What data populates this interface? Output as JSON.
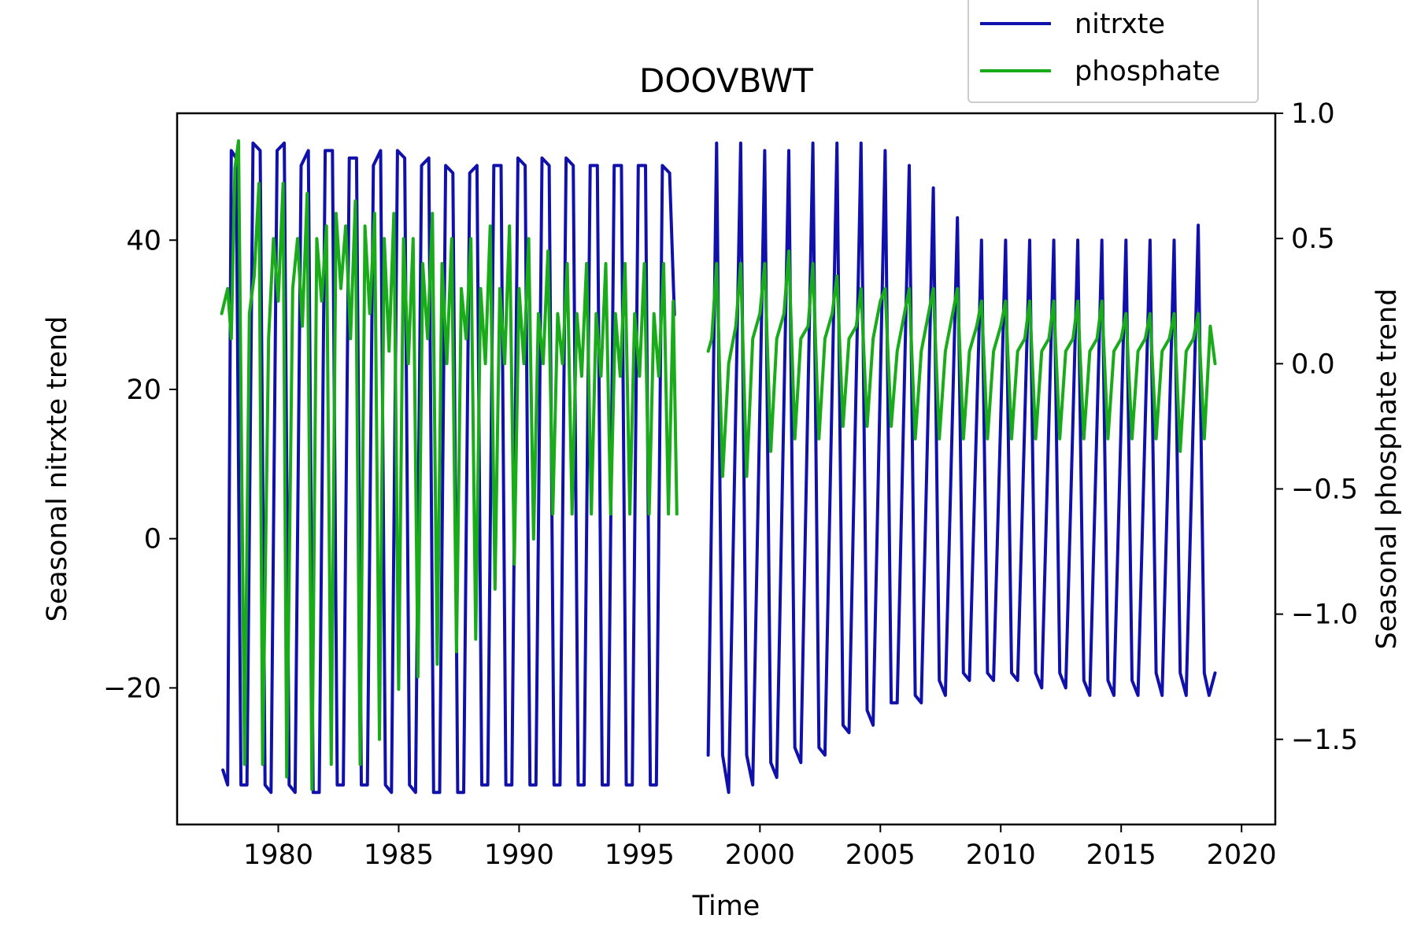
{
  "chart_data": {
    "type": "line",
    "title": "DOOVBWT",
    "xlabel": "Time",
    "ylabel": "Seasonal nitrxte trend",
    "ylabel_right": "Seasonal phosphate trend",
    "xlim": [
      1975.8,
      2021.4
    ],
    "ylim": [
      -38.3,
      57.0
    ],
    "ylim_right": [
      -1.84,
      1.0
    ],
    "xticks": [
      1980,
      1985,
      1990,
      1995,
      2000,
      2005,
      2010,
      2015,
      2020
    ],
    "xtick_labels": [
      "1980",
      "1985",
      "1990",
      "1995",
      "2000",
      "2005",
      "2010",
      "2015",
      "2020"
    ],
    "yticks": [
      -20,
      0,
      20,
      40
    ],
    "ytick_labels": [
      "−20",
      "0",
      "20",
      "40"
    ],
    "yticks_right": [
      -1.5,
      -1.0,
      -0.5,
      0.0,
      0.5,
      1.0
    ],
    "ytick_labels_right": [
      "−1.5",
      "−1.0",
      "−0.5",
      "0.0",
      "0.5",
      "1.0"
    ],
    "grid": false,
    "legend_placement": "top-right, above plot",
    "series": [
      {
        "name": "nitrxte",
        "axis": "left",
        "color": "#1010aa",
        "segments": [
          {
            "x": [
              1977.7,
              1977.9,
              1978.05,
              1978.25,
              1978.45,
              1978.7,
              1978.95,
              1979.25,
              1979.45,
              1979.7,
              1979.95,
              1980.25,
              1980.45,
              1980.7,
              1980.95,
              1981.25,
              1981.45,
              1981.7,
              1981.95,
              1982.25,
              1982.45,
              1982.7,
              1982.95,
              1983.25,
              1983.45,
              1983.7,
              1983.95,
              1984.25,
              1984.45,
              1984.7,
              1984.95,
              1985.25,
              1985.45,
              1985.7,
              1985.95,
              1986.25,
              1986.45,
              1986.7,
              1986.95,
              1987.25,
              1987.45,
              1987.7,
              1987.95,
              1988.25,
              1988.45,
              1988.7,
              1988.95,
              1989.25,
              1989.45,
              1989.7,
              1989.95,
              1990.25,
              1990.45,
              1990.7,
              1990.95,
              1991.25,
              1991.45,
              1991.7,
              1991.95,
              1992.25,
              1992.45,
              1992.7,
              1992.95,
              1993.25,
              1993.45,
              1993.7,
              1993.95,
              1994.25,
              1994.45,
              1994.7,
              1994.95,
              1995.25,
              1995.45,
              1995.7,
              1995.95,
              1996.25,
              1996.45
            ],
            "y": [
              -31,
              -33,
              52,
              51,
              -33,
              -33,
              53,
              52,
              -33,
              -34,
              52,
              53,
              -33,
              -34,
              50,
              52,
              -34,
              -34,
              52,
              52,
              -33,
              -33,
              51,
              51,
              -33,
              -33,
              50,
              52,
              -33,
              -34,
              52,
              51,
              -33,
              -34,
              50,
              51,
              -34,
              -34,
              50,
              49,
              -34,
              -34,
              49,
              50,
              -33,
              -33,
              50,
              50,
              -33,
              -33,
              51,
              50,
              -33,
              -33,
              51,
              50,
              -33,
              -33,
              51,
              50,
              -33,
              -33,
              50,
              50,
              -33,
              -33,
              50,
              50,
              -33,
              -33,
              50,
              50,
              -33,
              -33,
              50,
              49,
              30
            ]
          },
          {
            "x": [
              1997.85,
              1998.2,
              1998.45,
              1998.7,
              1999.2,
              1999.45,
              1999.7,
              2000.2,
              2000.45,
              2000.7,
              2001.2,
              2001.45,
              2001.7,
              2002.2,
              2002.45,
              2002.7,
              2003.2,
              2003.45,
              2003.7,
              2004.2,
              2004.45,
              2004.7,
              2005.2,
              2005.45,
              2005.7,
              2006.2,
              2006.45,
              2006.7,
              2007.2,
              2007.45,
              2007.7,
              2008.2,
              2008.45,
              2008.7,
              2009.2,
              2009.45,
              2009.7,
              2010.2,
              2010.45,
              2010.7,
              2011.2,
              2011.45,
              2011.7,
              2012.2,
              2012.45,
              2012.7,
              2013.2,
              2013.45,
              2013.7,
              2014.2,
              2014.45,
              2014.7,
              2015.2,
              2015.45,
              2015.7,
              2016.2,
              2016.45,
              2016.7,
              2017.2,
              2017.45,
              2017.7,
              2018.2,
              2018.45,
              2018.65,
              2018.9
            ],
            "y": [
              -29,
              53,
              -29,
              -34,
              53,
              -29,
              -33,
              52,
              -30,
              -32,
              52,
              -28,
              -30,
              53,
              -28,
              -29,
              53,
              -25,
              -26,
              53,
              -23,
              -25,
              52,
              -22,
              -22,
              50,
              -21,
              -22,
              47,
              -19,
              -21,
              43,
              -18,
              -19,
              40,
              -18,
              -19,
              40,
              -18,
              -19,
              40,
              -18,
              -20,
              40,
              -18,
              -20,
              40,
              -19,
              -21,
              40,
              -19,
              -21,
              40,
              -19,
              -21,
              40,
              -18,
              -21,
              40,
              -18,
              -21,
              42,
              -18,
              -21,
              -18
            ]
          }
        ]
      },
      {
        "name": "phosphate",
        "axis": "right",
        "color": "#1aab1a",
        "segments": [
          {
            "x": [
              1977.65,
              1977.9,
              1978.05,
              1978.2,
              1978.35,
              1978.6,
              1978.8,
              1979.0,
              1979.2,
              1979.35,
              1979.6,
              1979.8,
              1980.0,
              1980.2,
              1980.35,
              1980.6,
              1980.8,
              1981.0,
              1981.2,
              1981.4,
              1981.6,
              1981.8,
              1982.0,
              1982.2,
              1982.4,
              1982.6,
              1982.8,
              1983.0,
              1983.2,
              1983.4,
              1983.6,
              1983.8,
              1984.0,
              1984.2,
              1984.4,
              1984.6,
              1984.8,
              1985.0,
              1985.2,
              1985.4,
              1985.6,
              1985.8,
              1986.0,
              1986.2,
              1986.4,
              1986.6,
              1986.8,
              1987.0,
              1987.2,
              1987.4,
              1987.6,
              1987.8,
              1988.0,
              1988.2,
              1988.4,
              1988.6,
              1988.8,
              1989.0,
              1989.2,
              1989.4,
              1989.6,
              1989.8,
              1990.0,
              1990.2,
              1990.4,
              1990.6,
              1990.8,
              1991.0,
              1991.2,
              1991.4,
              1991.6,
              1991.8,
              1992.0,
              1992.2,
              1992.4,
              1992.6,
              1992.8,
              1993.0,
              1993.2,
              1993.4,
              1993.6,
              1993.8,
              1994.0,
              1994.2,
              1994.4,
              1994.6,
              1994.8,
              1995.0,
              1995.2,
              1995.4,
              1995.6,
              1995.8,
              1996.0,
              1996.2,
              1996.4,
              1996.55
            ],
            "y": [
              0.2,
              0.3,
              0.1,
              0.78,
              0.89,
              -1.6,
              0.2,
              0.35,
              0.72,
              -1.6,
              0.1,
              0.5,
              0.25,
              0.72,
              -1.65,
              0.3,
              0.5,
              0.15,
              0.68,
              -1.7,
              0.5,
              0.25,
              0.55,
              -1.6,
              0.6,
              0.3,
              0.55,
              0.1,
              0.65,
              -1.6,
              0.55,
              0.2,
              0.6,
              -1.5,
              0.5,
              0.05,
              0.6,
              -1.3,
              0.5,
              0.0,
              0.5,
              -1.25,
              0.4,
              0.1,
              0.6,
              -1.2,
              0.4,
              0.0,
              0.5,
              -1.15,
              0.3,
              0.1,
              0.5,
              -1.1,
              0.3,
              0.0,
              0.55,
              -0.9,
              0.3,
              0.0,
              0.55,
              -0.8,
              0.3,
              0.0,
              0.5,
              -0.7,
              0.2,
              0.0,
              0.45,
              -0.6,
              0.2,
              0.0,
              0.4,
              -0.6,
              0.2,
              -0.05,
              0.4,
              -0.6,
              0.2,
              -0.05,
              0.4,
              -0.6,
              0.2,
              -0.05,
              0.4,
              -0.6,
              0.2,
              -0.05,
              0.4,
              -0.6,
              0.2,
              -0.05,
              0.4,
              -0.6,
              0.25,
              -0.6
            ]
          },
          {
            "x": [
              1997.85,
              1998.0,
              1998.2,
              1998.45,
              1998.7,
              1999.0,
              1999.2,
              1999.45,
              1999.7,
              2000.0,
              2000.2,
              2000.45,
              2000.7,
              2001.0,
              2001.2,
              2001.45,
              2001.7,
              2002.0,
              2002.2,
              2002.45,
              2002.7,
              2003.0,
              2003.2,
              2003.45,
              2003.7,
              2004.0,
              2004.2,
              2004.45,
              2004.7,
              2005.0,
              2005.2,
              2005.45,
              2005.7,
              2006.0,
              2006.2,
              2006.45,
              2006.7,
              2007.0,
              2007.2,
              2007.45,
              2007.7,
              2008.0,
              2008.2,
              2008.45,
              2008.7,
              2009.0,
              2009.2,
              2009.45,
              2009.7,
              2010.0,
              2010.2,
              2010.45,
              2010.7,
              2011.0,
              2011.2,
              2011.45,
              2011.7,
              2012.0,
              2012.2,
              2012.45,
              2012.7,
              2013.0,
              2013.2,
              2013.45,
              2013.7,
              2014.0,
              2014.2,
              2014.45,
              2014.7,
              2015.0,
              2015.2,
              2015.45,
              2015.7,
              2016.0,
              2016.2,
              2016.45,
              2016.7,
              2017.0,
              2017.2,
              2017.45,
              2017.7,
              2018.0,
              2018.2,
              2018.45,
              2018.7,
              2018.9
            ],
            "y": [
              0.05,
              0.1,
              0.4,
              -0.45,
              0.0,
              0.15,
              0.4,
              -0.45,
              0.1,
              0.2,
              0.4,
              -0.35,
              0.1,
              0.2,
              0.45,
              -0.3,
              0.1,
              0.15,
              0.4,
              -0.3,
              0.1,
              0.2,
              0.35,
              -0.25,
              0.1,
              0.15,
              0.3,
              -0.25,
              0.1,
              0.25,
              0.3,
              -0.25,
              0.05,
              0.2,
              0.3,
              -0.3,
              0.05,
              0.2,
              0.3,
              -0.3,
              0.05,
              0.2,
              0.3,
              -0.3,
              0.05,
              0.15,
              0.25,
              -0.3,
              0.05,
              0.15,
              0.25,
              -0.3,
              0.05,
              0.1,
              0.25,
              -0.3,
              0.05,
              0.1,
              0.25,
              -0.3,
              0.05,
              0.1,
              0.25,
              -0.3,
              0.05,
              0.1,
              0.25,
              -0.3,
              0.05,
              0.1,
              0.2,
              -0.3,
              0.05,
              0.1,
              0.2,
              -0.3,
              0.05,
              0.1,
              0.2,
              -0.35,
              0.05,
              0.1,
              0.2,
              -0.3,
              0.15,
              0.0
            ]
          }
        ]
      }
    ]
  }
}
